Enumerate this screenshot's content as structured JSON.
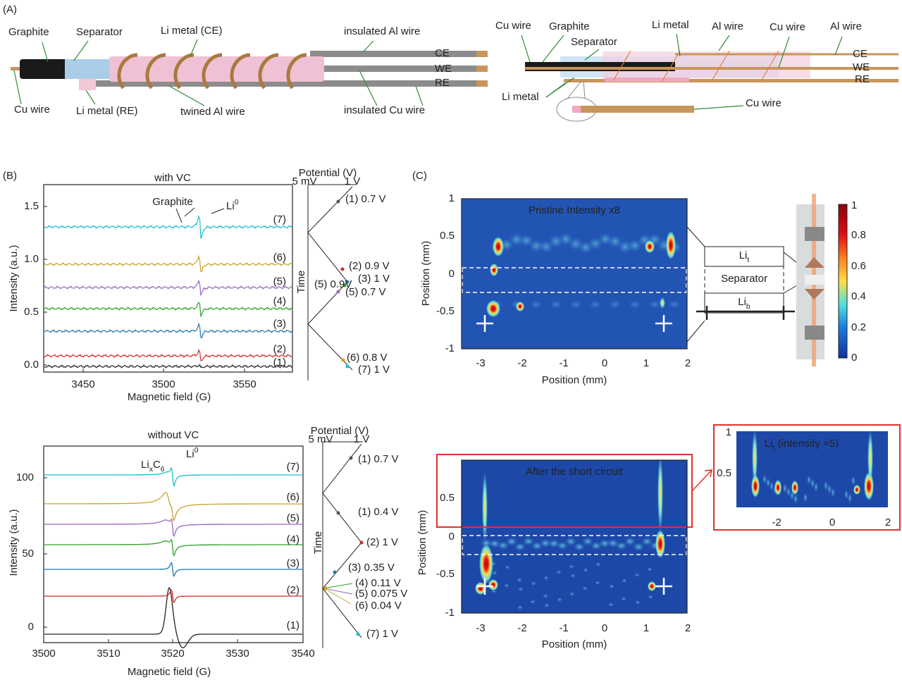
{
  "panel_a": {
    "label": "(A)",
    "left": {
      "graphite": "Graphite",
      "separator": "Separator",
      "li_ce": "Li metal (CE)",
      "al_wire": "insulated Al wire",
      "ce": "CE",
      "we": "WE",
      "re": "RE",
      "cu_wire": "Cu wire",
      "li_re": "Li metal (RE)",
      "twined": "twined Al wire",
      "cu_insulated": "insulated Cu wire"
    },
    "right": {
      "cu_wire_top": "Cu wire",
      "graphite": "Graphite",
      "separator": "Separator",
      "li_metal_top": "Li metal",
      "al_wire_1": "Al wire",
      "cu_wire_2": "Cu wire",
      "al_wire_2": "Al wire",
      "ce": "CE",
      "we": "WE",
      "re": "RE",
      "li_metal": "Li metal",
      "cu_wire_bottom": "Cu wire"
    }
  },
  "panel_b": {
    "label": "(B)",
    "with_vc": {
      "title": "with VC",
      "x_label": "Magnetic field (G)",
      "y_label": "Intensity (a.u.)",
      "x_ticks": [
        "3450",
        "3500",
        "3550"
      ],
      "y_ticks": [
        "0.0",
        "0.5",
        "1.0",
        "1.5"
      ],
      "graphite": "Graphite",
      "li0": {
        "main": "Li",
        "sup": "0"
      },
      "curves": [
        "(1)",
        "(2)",
        "(3)",
        "(4)",
        "(5)",
        "(6)",
        "(7)"
      ],
      "potential": {
        "title": "Potential (V)",
        "start": "5 mV",
        "end": "1 V",
        "time": "Time",
        "steps": [
          "(1) 0.7 V",
          "(2) 0.9 V",
          "(3) 1 V",
          "(5) 0.9V",
          "(5) 0.7 V",
          "(6) 0.8 V",
          "(7) 1 V"
        ]
      }
    },
    "without_vc": {
      "title": "without VC",
      "x_label": "Magnetic field (G)",
      "y_label": "Intensity (a.u.)",
      "x_ticks": [
        "3500",
        "3510",
        "3520",
        "3530",
        "3540"
      ],
      "y_ticks": [
        "0",
        "50",
        "100"
      ],
      "lixc6": {
        "main": "Li",
        "sub1": "x",
        "mid": "C",
        "sub2": "6"
      },
      "li0": {
        "main": "Li",
        "sup": "0"
      },
      "curves": [
        "(1)",
        "(2)",
        "(3)",
        "(4)",
        "(5)",
        "(6)",
        "(7)"
      ],
      "potential": {
        "title": "Potential (V)",
        "start": "5 mV",
        "end": "1 V",
        "time": "Time",
        "steps": [
          "(1) 0.7 V",
          "(1) 0.4 V",
          "(2) 1 V",
          "(3) 0.35 V",
          "(4) 0.11 V",
          "(5) 0.075 V",
          "(6) 0.04 V",
          "(7) 1 V"
        ]
      }
    }
  },
  "panel_c": {
    "label": "(C)",
    "pristine": {
      "title": "Pristine  Intensity x8",
      "x_label": "Position (mm)",
      "y_label": "Position (mm)",
      "x_ticks": [
        "-3",
        "-2",
        "-1",
        "0",
        "1",
        "2"
      ],
      "y_ticks": [
        "1",
        "0.5",
        "0",
        "-0.5",
        "-1"
      ]
    },
    "schematic": {
      "li_t": {
        "main": "Li",
        "sub": "t"
      },
      "separator": "Separator",
      "li_b": {
        "main": "Li",
        "sub": "b"
      }
    },
    "colorbar_ticks": [
      "1",
      "0.8",
      "0.6",
      "0.4",
      "0.2",
      "0"
    ],
    "short_circuit": {
      "title": "After the short circuit",
      "x_label": "Position (mm)",
      "y_label": "Position (mm)",
      "x_ticks": [
        "-3",
        "-2",
        "-1",
        "0",
        "1",
        "2"
      ],
      "y_ticks": [
        "0.5",
        "0",
        "-0.5",
        "-1"
      ]
    },
    "inset": {
      "title": {
        "main": "Li",
        "sub": "t",
        "rest": " (intensity ×5)"
      },
      "x_ticks": [
        "-2",
        "0",
        "2"
      ],
      "y_ticks": [
        "1",
        "0.5"
      ]
    }
  }
}
